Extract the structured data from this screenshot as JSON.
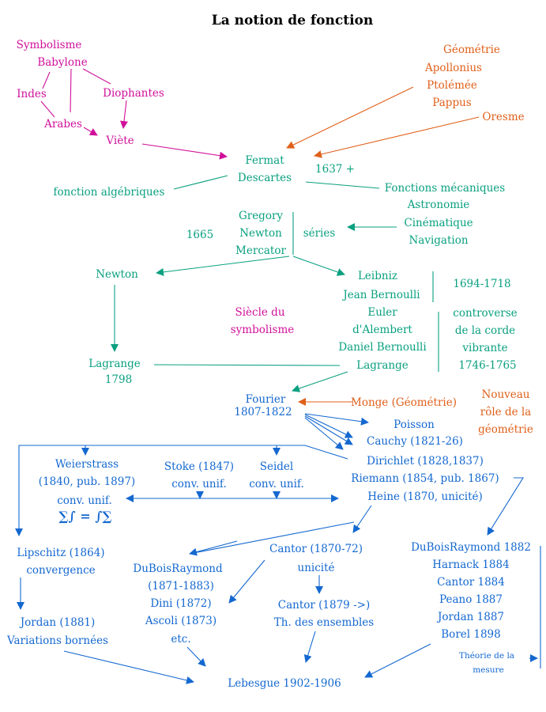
{
  "title": "La notion de fonction",
  "colors": {
    "symbolism": "#d0109a",
    "geometry": "#e0601a",
    "early": "#0aa080",
    "analysis": "#1468d0"
  },
  "magenta": [
    "Symbolisme",
    "Babylone",
    "Indes",
    "Diophantes",
    "Arabes",
    "Viète",
    "Siècle du",
    "symbolisme"
  ],
  "orange": [
    "Géométrie",
    "Apollonius",
    "Ptolémée",
    "Pappus",
    "Oresme",
    "Monge (Géométrie)",
    "Nouveau",
    "rôle de la",
    "géométrie"
  ],
  "teal": [
    "Fermat",
    "Descartes",
    "1637 +",
    "fonction algébriques",
    "Fonctions mécaniques",
    "Astronomie",
    "Cinématique",
    "Navigation",
    "Gregory",
    "Newton",
    "Mercator",
    "1665",
    "séries",
    "Newton",
    "Leibniz",
    "Jean Bernoulli",
    "1694-1718",
    "Euler",
    "d'Alembert",
    "Daniel Bernoulli",
    "Lagrange",
    "controverse",
    "de la corde",
    "vibrante",
    "1746-1765",
    "Lagrange",
    "1798"
  ],
  "blue": [
    "Fourier",
    "1807-1822",
    "Poisson",
    "Cauchy (1821-26)",
    "Dirichlet (1828,1837)",
    "Riemann (1854, pub. 1867)",
    "Heine (1870, unicité)",
    "Weierstrass",
    "(1840, pub. 1897)",
    "conv. unif.",
    "∑∫ = ∫∑",
    "Stoke (1847)",
    "conv. unif.",
    "Seidel",
    "conv. unif.",
    "Lipschitz (1864)",
    "convergence",
    "DuBoisRaymond",
    "(1871-1883)",
    "Dini (1872)",
    "Ascoli (1873)",
    "etc.",
    "Cantor (1870-72)",
    "unicité",
    "Cantor (1879 ->)",
    "Th. des ensembles",
    "Jordan (1881)",
    "Variations bornées",
    "Lebesgue 1902-1906",
    "DuBoisRaymond 1882",
    "Harnack 1884",
    "Cantor 1884",
    "Peano 1887",
    "Jordan 1887",
    "Borel 1898",
    "Théorie de la",
    "mesure"
  ]
}
